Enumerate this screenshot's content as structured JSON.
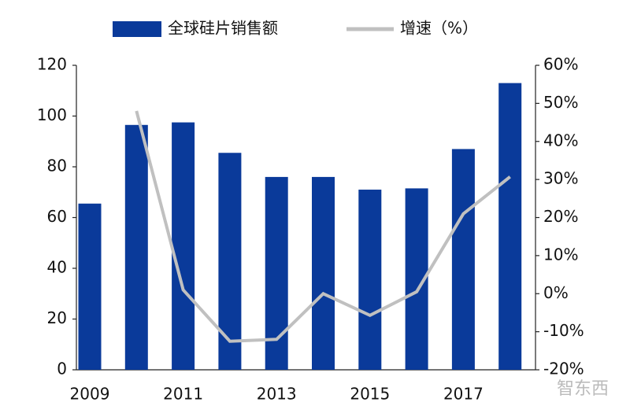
{
  "chart_data": {
    "type": "bar_line",
    "categories": [
      "2009",
      null,
      "2011",
      null,
      "2013",
      null,
      "2015",
      null,
      "2017",
      null
    ],
    "series": [
      {
        "name": "全球硅片销售额",
        "type": "bar",
        "color": "#0a3a9a",
        "values": [
          65.5,
          96.5,
          97.5,
          85.5,
          76,
          76,
          71,
          71.5,
          87,
          113
        ]
      },
      {
        "name": "增速（%）",
        "type": "line",
        "axis": "y2",
        "color": "#c0c0c0",
        "values": [
          null,
          48,
          1,
          -12.5,
          -12,
          0,
          -5.7,
          0.5,
          21,
          30.7
        ]
      }
    ],
    "ylim": [
      0,
      120
    ],
    "yticks": [
      0,
      20,
      40,
      60,
      80,
      100,
      120
    ],
    "y2lim": [
      -20,
      60
    ],
    "y2ticks": [
      {
        "value": -20,
        "label": "-20%"
      },
      {
        "value": -10,
        "label": "-10%"
      },
      {
        "value": 0,
        "label": "0%"
      },
      {
        "value": 10,
        "label": "10%"
      },
      {
        "value": 20,
        "label": "20%"
      },
      {
        "value": 30,
        "label": "30%"
      },
      {
        "value": 40,
        "label": "40%"
      },
      {
        "value": 50,
        "label": "50%"
      },
      {
        "value": 60,
        "label": "60%"
      }
    ],
    "grid": false,
    "legend": "top"
  },
  "watermark": "智东西"
}
